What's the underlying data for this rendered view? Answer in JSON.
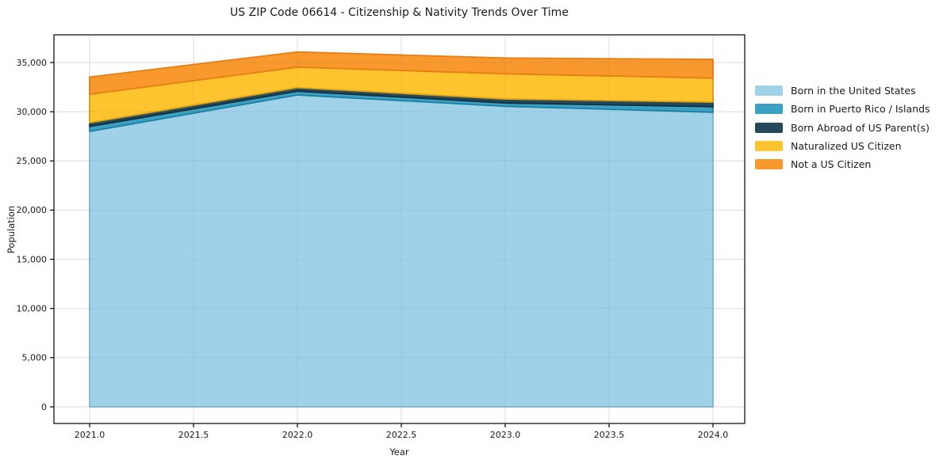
{
  "chart_data": {
    "type": "area",
    "stacked": true,
    "title": "US ZIP Code 06614 - Citizenship & Nativity Trends Over Time",
    "xlabel": "Year",
    "ylabel": "Population",
    "x": [
      2021,
      2022,
      2023,
      2024
    ],
    "series": [
      {
        "name": "Born in the United States",
        "color": "#9FD1E8",
        "edge_color": "#7EB9D6",
        "values": [
          28000,
          31700,
          30550,
          29950
        ]
      },
      {
        "name": "Born in Puerto Rico / Islands",
        "color": "#3BA1C2",
        "edge_color": "#1E80A2",
        "values": [
          500,
          390,
          340,
          560
        ]
      },
      {
        "name": "Born Abroad of US Parent(s)",
        "color": "#24485C",
        "edge_color": "#14303F",
        "values": [
          380,
          350,
          400,
          460
        ]
      },
      {
        "name": "Naturalized US Citizen",
        "color": "#FDC42E",
        "edge_color": "#D8A014",
        "values": [
          2890,
          2090,
          2570,
          2450
        ]
      },
      {
        "name": "Not a US Citizen",
        "color": "#F8982D",
        "edge_color": "#E67D15",
        "values": [
          1760,
          1550,
          1600,
          1900
        ]
      }
    ],
    "totals": [
      33530,
      36080,
      35460,
      35320
    ],
    "xticks": [
      2021.0,
      2021.5,
      2022.0,
      2022.5,
      2023.0,
      2023.5,
      2024.0
    ],
    "xtick_labels": [
      "2021.0",
      "2021.5",
      "2022.0",
      "2022.5",
      "2023.0",
      "2023.5",
      "2024.0"
    ],
    "yticks": [
      0,
      5000,
      10000,
      15000,
      20000,
      25000,
      30000,
      35000
    ],
    "ytick_labels": [
      "0",
      "5,000",
      "10,000",
      "15,000",
      "20,000",
      "25,000",
      "30,000",
      "35,000"
    ],
    "ylim": [
      0,
      35000
    ],
    "grid": true,
    "grid_color": "#e8e8e8",
    "spine_color": "#000000",
    "text_color": "#1a1a1a",
    "legend_position": "right-outside"
  }
}
